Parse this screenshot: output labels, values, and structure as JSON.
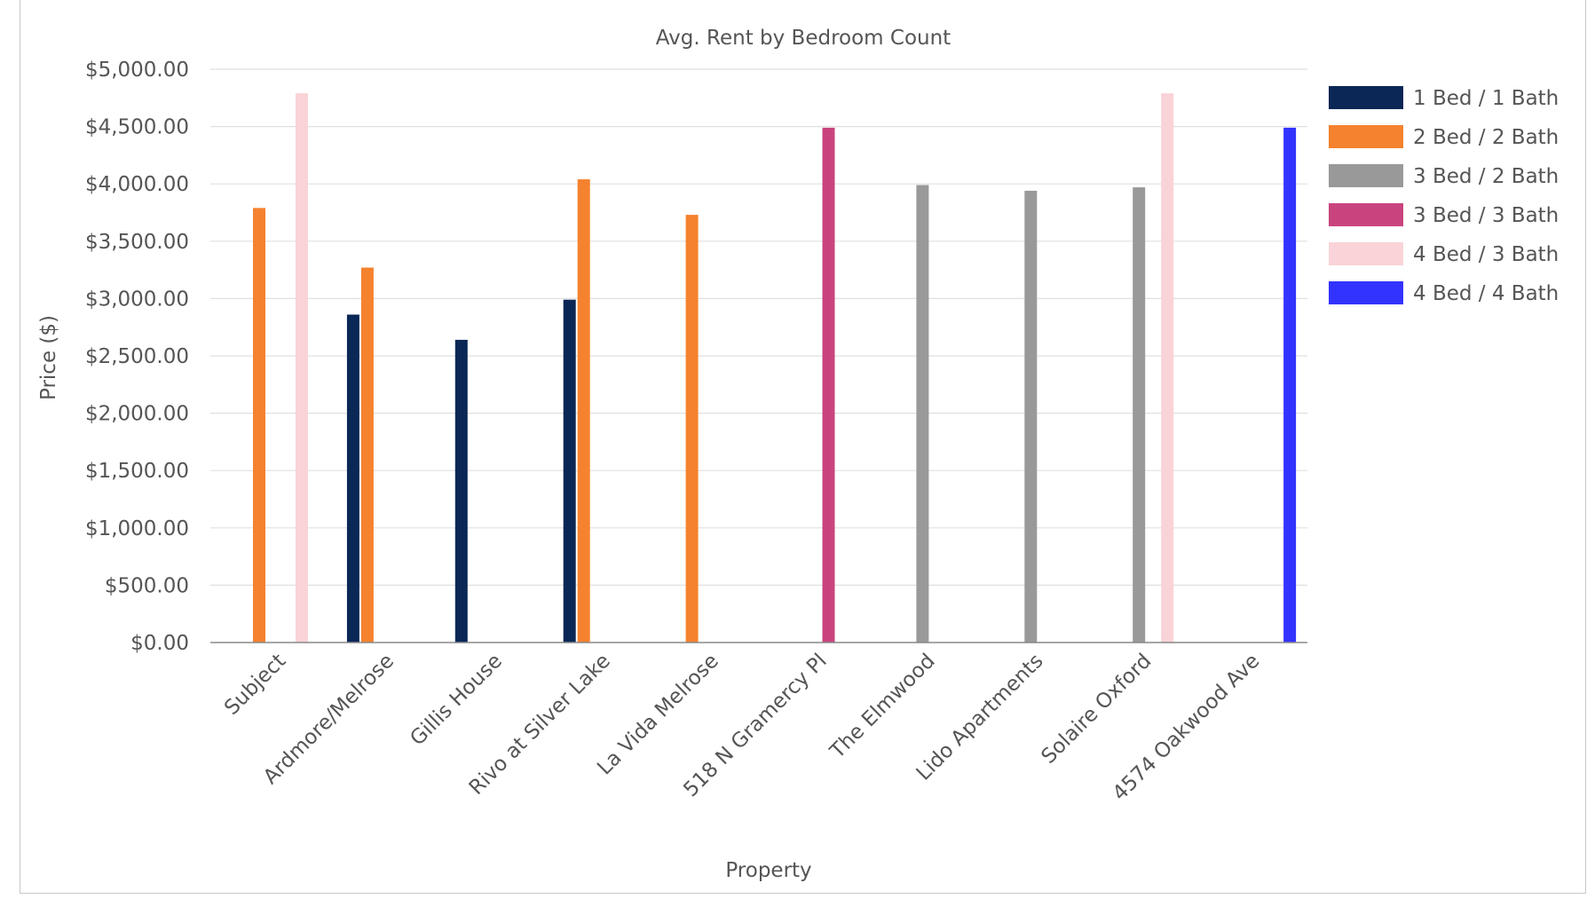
{
  "chart_data": {
    "type": "bar",
    "title": "Avg. Rent by Bedroom Count",
    "xlabel": "Property",
    "ylabel": "Price ($)",
    "ylim": [
      0,
      5000
    ],
    "yticks": [
      0,
      500,
      1000,
      1500,
      2000,
      2500,
      3000,
      3500,
      4000,
      4500,
      5000
    ],
    "ytick_labels": [
      "$0.00",
      "$500.00",
      "$1,000.00",
      "$1,500.00",
      "$2,000.00",
      "$2,500.00",
      "$3,000.00",
      "$3,500.00",
      "$4,000.00",
      "$4,500.00",
      "$5,000.00"
    ],
    "grid": true,
    "legend_position": "right",
    "categories": [
      "Subject",
      "Ardmore/Melrose",
      "Gillis House",
      "Rivo at Silver Lake",
      "La Vida Melrose",
      "518 N Gramercy Pl",
      "The Elmwood",
      "Lido Apartments",
      "Solaire Oxford",
      "4574 Oakwood Ave"
    ],
    "series": [
      {
        "name": "1 Bed / 1 Bath",
        "color": "#0a2756",
        "values": [
          null,
          2860,
          2640,
          2990,
          null,
          null,
          null,
          null,
          null,
          null
        ]
      },
      {
        "name": "2 Bed / 2 Bath",
        "color": "#f5822e",
        "values": [
          3790,
          3270,
          null,
          4040,
          3730,
          null,
          null,
          null,
          null,
          null
        ]
      },
      {
        "name": "3 Bed / 2 Bath",
        "color": "#999999",
        "values": [
          null,
          null,
          null,
          null,
          null,
          null,
          3990,
          3940,
          3970,
          null
        ]
      },
      {
        "name": "3 Bed / 3 Bath",
        "color": "#c9447e",
        "values": [
          null,
          null,
          null,
          null,
          null,
          4490,
          null,
          null,
          null,
          null
        ]
      },
      {
        "name": "4 Bed / 3 Bath",
        "color": "#f9d3d7",
        "values": [
          4790,
          null,
          null,
          null,
          null,
          null,
          null,
          null,
          4790,
          null
        ]
      },
      {
        "name": "4 Bed / 4 Bath",
        "color": "#3333ff",
        "values": [
          null,
          null,
          null,
          null,
          null,
          null,
          null,
          null,
          null,
          4490
        ]
      }
    ]
  }
}
